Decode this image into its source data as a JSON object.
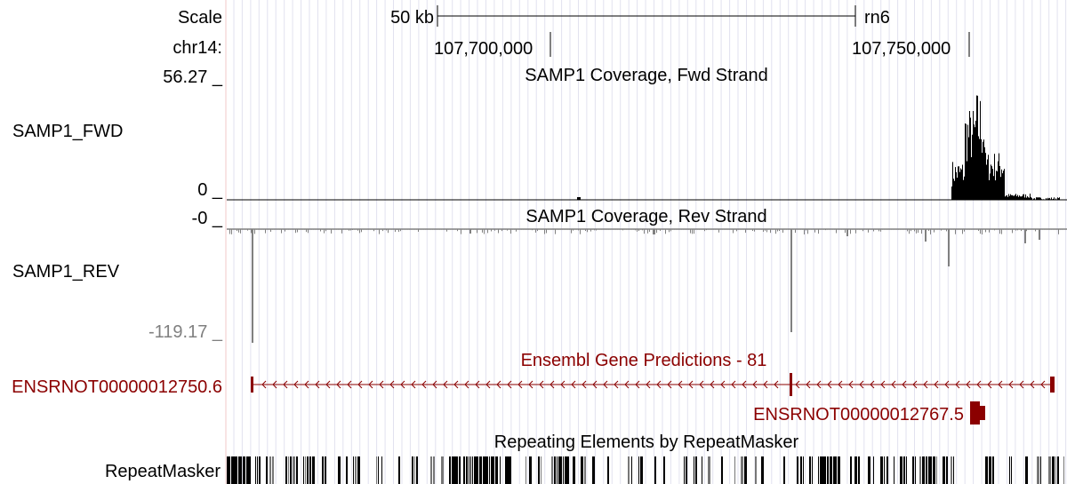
{
  "scale_row": {
    "label": "Scale",
    "bar_label": "50 kb",
    "assembly": "rn6"
  },
  "position_row": {
    "chrom_label": "chr14:",
    "ticks": [
      "107,700,000",
      "107,750,000"
    ]
  },
  "tracks": {
    "fwd": {
      "title": "SAMP1 Coverage, Fwd Strand",
      "name": "SAMP1_FWD",
      "max_label": "56.27 _",
      "min_label": "0 _",
      "color": "#000000"
    },
    "rev": {
      "title": "SAMP1 Coverage, Rev Strand",
      "name": "SAMP1_REV",
      "max_label": "-0 _",
      "min_label": "-119.17 _",
      "color": "#808080"
    },
    "ensembl": {
      "title": "Ensembl Gene Predictions - 81",
      "transcript_1": "ENSRNOT00000012750.6",
      "transcript_2": "ENSRNOT00000012767.5",
      "color": "#8b0000"
    },
    "repeatmasker": {
      "title": "Repeating Elements by RepeatMasker",
      "name": "RepeatMasker"
    }
  }
}
